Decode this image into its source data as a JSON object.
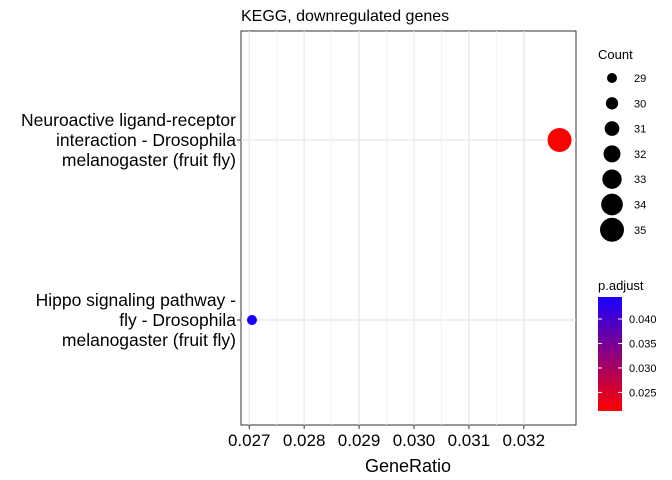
{
  "chart_data": {
    "type": "scatter",
    "title": "KEGG, downregulated genes",
    "xlabel": "GeneRatio",
    "ylabel": "",
    "xlim": [
      0.02685,
      0.03295
    ],
    "xticks": [
      "0.027",
      "0.028",
      "0.029",
      "0.030",
      "0.031",
      "0.032"
    ],
    "categories": [
      [
        "Hippo signaling pathway -",
        "fly - Drosophila",
        "melanogaster (fruit fly)"
      ],
      [
        "Neuroactive ligand-receptor",
        "interaction - Drosophila",
        "melanogaster (fruit fly)"
      ]
    ],
    "points": [
      {
        "category_index": 0,
        "gene_ratio": 0.02705,
        "count": 29,
        "p_adjust": 0.0445,
        "color": "#1a00ff"
      },
      {
        "category_index": 1,
        "gene_ratio": 0.03265,
        "count": 35,
        "p_adjust": 0.0212,
        "color": "#ff0000"
      }
    ],
    "size_legend": {
      "title": "Count",
      "labels": [
        "29",
        "30",
        "31",
        "32",
        "33",
        "34",
        "35"
      ]
    },
    "color_legend": {
      "title": "p.adjust",
      "labels": [
        "0.040",
        "0.035",
        "0.030",
        "0.025"
      ],
      "ticks": [
        0.04,
        0.035,
        0.03,
        0.025
      ],
      "range": [
        0.0212,
        0.0445
      ],
      "low_color": "#ff0000",
      "high_color": "#1a00ff"
    },
    "grid": true
  }
}
